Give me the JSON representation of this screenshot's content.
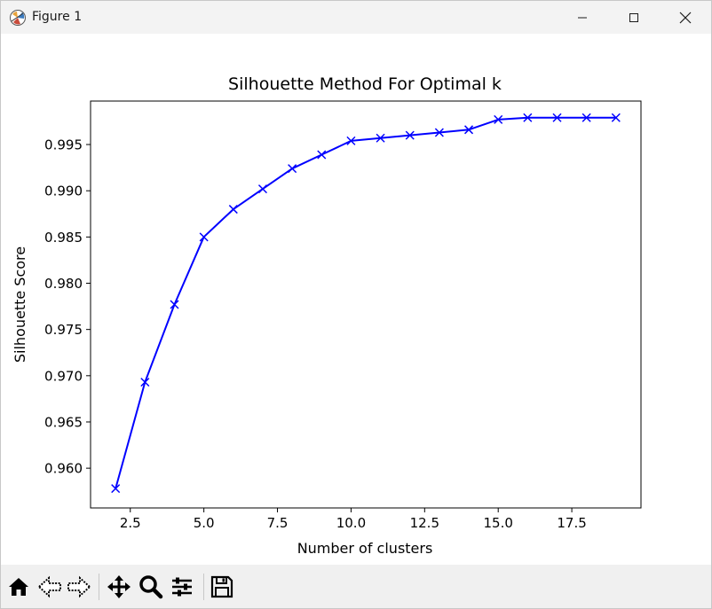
{
  "window": {
    "title": "Figure 1"
  },
  "toolbar": {
    "buttons": [
      {
        "icon": "home-icon"
      },
      {
        "icon": "back-arrow-icon"
      },
      {
        "icon": "forward-arrow-icon"
      },
      {
        "icon": "pan-icon"
      },
      {
        "icon": "zoom-icon"
      },
      {
        "icon": "configure-subplots-icon"
      },
      {
        "icon": "save-icon"
      }
    ]
  },
  "chart_data": {
    "type": "line",
    "title": "Silhouette Method For Optimal k",
    "xlabel": "Number of clusters",
    "ylabel": "Silhouette Score",
    "xlim": [
      1.15,
      19.85
    ],
    "ylim": [
      0.9557,
      0.9997
    ],
    "xticks": [
      "2.5",
      "5.0",
      "7.5",
      "10.0",
      "12.5",
      "15.0",
      "17.5"
    ],
    "yticks": [
      "0.960",
      "0.965",
      "0.970",
      "0.975",
      "0.980",
      "0.985",
      "0.990",
      "0.995"
    ],
    "grid": false,
    "marker": "x",
    "color": "#0000ff",
    "x": [
      2,
      3,
      4,
      5,
      6,
      7,
      8,
      9,
      10,
      11,
      12,
      13,
      14,
      15,
      16,
      17,
      18,
      19
    ],
    "y": [
      0.9578,
      0.9693,
      0.9777,
      0.985,
      0.988,
      0.9902,
      0.9924,
      0.9939,
      0.9954,
      0.9957,
      0.996,
      0.9963,
      0.9966,
      0.9977,
      0.9979,
      0.9979,
      0.9979,
      0.9979
    ]
  }
}
